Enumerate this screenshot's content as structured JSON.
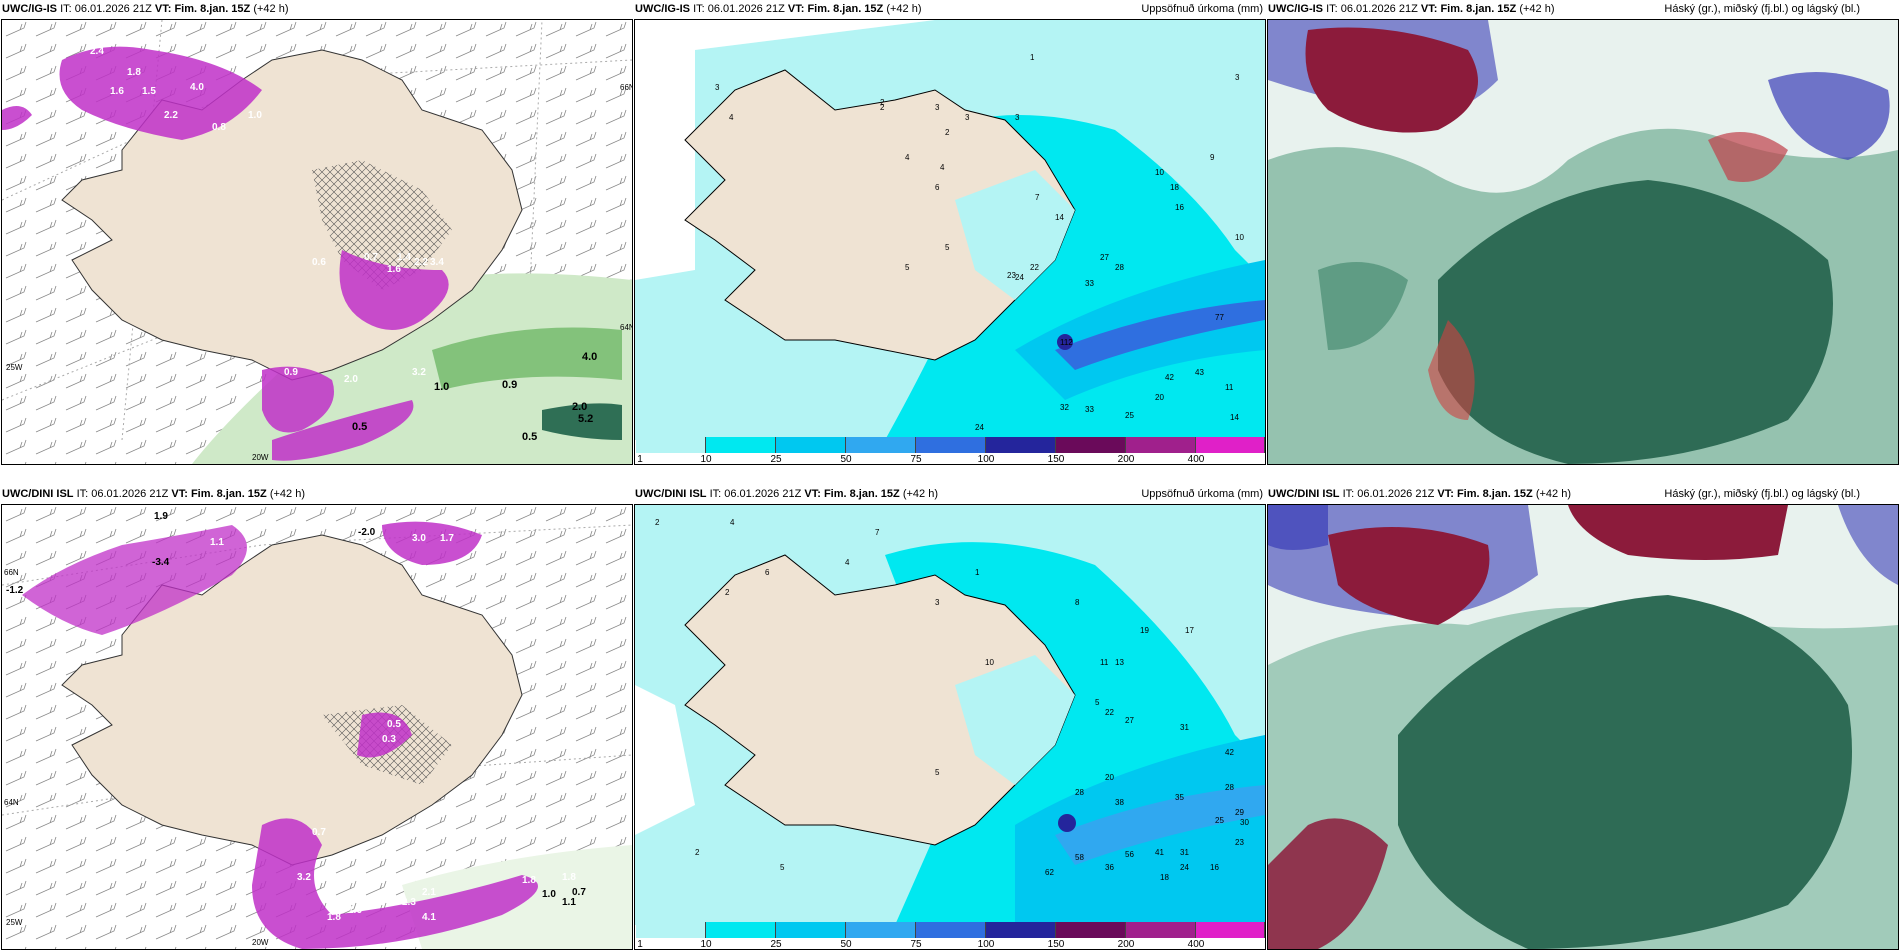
{
  "top_row": {
    "panel_a": {
      "model": "UWC/IG-IS",
      "it_label": "IT:",
      "it_value": "06.01.2026 21Z",
      "vt_label": "VT:",
      "vt_value": "Fim. 8.jan. 15Z",
      "lead": "(+42 h)",
      "lon_labels": [
        "25W",
        "20W"
      ],
      "lat_labels": [
        "64N",
        "66N"
      ],
      "values": [
        "2.4",
        "1.8",
        "4.0",
        "1.6",
        "1.5",
        "2.2",
        "1.0",
        "0.8",
        "0.6",
        "1.4",
        "2.2",
        "3.4",
        "0.7",
        "1.6",
        "0.9",
        "2.0",
        "3.2",
        "4.0",
        "0.9",
        "2.0",
        "5.2",
        "0.5",
        "0.5",
        "1.0"
      ]
    },
    "panel_b": {
      "model": "UWC/IG-IS",
      "it_label": "IT:",
      "it_value": "06.01.2026 21Z",
      "vt_label": "VT:",
      "vt_value": "Fim. 8.jan. 15Z",
      "lead": "(+42 h)",
      "field_title": "Uppsöfnuð úrkoma (mm)",
      "legend_ticks": [
        "1",
        "10",
        "25",
        "50",
        "75",
        "100",
        "150",
        "200",
        "400"
      ],
      "values": [
        "3",
        "4",
        "1",
        "2",
        "3",
        "3",
        "4",
        "2",
        "3",
        "5",
        "4",
        "6",
        "7",
        "22",
        "24",
        "27",
        "28",
        "33",
        "42",
        "43",
        "77",
        "112",
        "32",
        "33",
        "25",
        "20",
        "11",
        "14",
        "24",
        "18",
        "16",
        "14",
        "10",
        "9",
        "10",
        "5",
        "2",
        "3",
        "23"
      ]
    },
    "panel_c": {
      "model": "UWC/IG-IS",
      "it_label": "IT:",
      "it_value": "06.01.2026 21Z",
      "vt_label": "VT:",
      "vt_value": "Fim. 8.jan. 15Z",
      "lead": "(+42 h)",
      "field_title": "Háský (gr.), miðský (fj.bl.) og lágský (bl.)"
    }
  },
  "bottom_row": {
    "panel_a": {
      "model": "UWC/DINI ISL",
      "it_label": "IT:",
      "it_value": "06.01.2026 21Z",
      "vt_label": "VT:",
      "vt_value": "Fim. 8.jan. 15Z",
      "lead": "(+42 h)",
      "lon_labels": [
        "25W",
        "20W"
      ],
      "lat_labels": [
        "64N",
        "66N"
      ],
      "values": [
        "-1.2",
        "1.9",
        "-2.0",
        "3.0",
        "1.7",
        "1.1",
        "-3.4",
        "2.4",
        "0.5",
        "0.3",
        "0.7",
        "3.2",
        "1.8",
        "2.3",
        "2.1",
        "4.1",
        "1.8",
        "1.0",
        "0.7",
        "1.1",
        "1.8",
        "1.6"
      ]
    },
    "panel_b": {
      "model": "UWC/DINI ISL",
      "it_label": "IT:",
      "it_value": "06.01.2026 21Z",
      "vt_label": "VT:",
      "vt_value": "Fim. 8.jan. 15Z",
      "lead": "(+42 h)",
      "field_title": "Uppsöfnuð úrkoma (mm)",
      "legend_ticks": [
        "1",
        "10",
        "25",
        "50",
        "75",
        "100",
        "150",
        "200",
        "400"
      ],
      "values": [
        "2",
        "2",
        "4",
        "4",
        "3",
        "1",
        "7",
        "6",
        "5",
        "10",
        "8",
        "19",
        "17",
        "11",
        "13",
        "22",
        "27",
        "31",
        "42",
        "28",
        "35",
        "38",
        "29",
        "25",
        "30",
        "23",
        "56",
        "41",
        "31",
        "24",
        "16",
        "18",
        "58",
        "62",
        "36",
        "28",
        "20",
        "5",
        "2",
        "5"
      ]
    },
    "panel_c": {
      "model": "UWC/DINI ISL",
      "it_label": "IT:",
      "it_value": "06.01.2026 21Z",
      "vt_label": "VT:",
      "vt_value": "Fim. 8.jan. 15Z",
      "lead": "(+42 h)",
      "field_title": "Háský (gr.), miðský (fj.bl.) og lágský (bl.)"
    }
  },
  "colors": {
    "land": "#efe3d3",
    "precip_light": "#b4f4f4",
    "precip_cyan": "#00e8f0",
    "precip_blue": "#2f6fe0",
    "magenta": "#c030c8",
    "green_light": "#cfe9c8",
    "green_dark": "#2f6f55",
    "cloud_high": "#2e6b55",
    "cloud_mid": "#3a3db8",
    "cloud_low": "#8c1b3b"
  },
  "legend_colors": [
    "#b4f4f4",
    "#00e8f0",
    "#00c8f0",
    "#30a8f0",
    "#2f6fe0",
    "#24259c",
    "#6a0a5a",
    "#a0208c",
    "#e020c8",
    "#f3b8f0"
  ]
}
